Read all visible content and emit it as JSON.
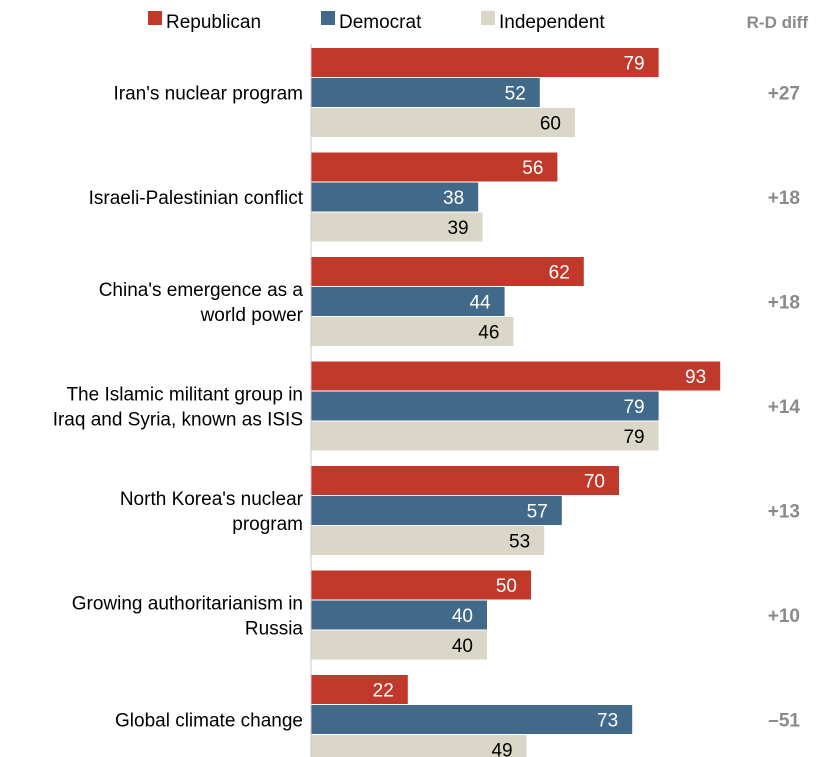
{
  "chart_data": {
    "type": "bar",
    "orientation": "horizontal",
    "categories": [
      [
        "Iran's nuclear program"
      ],
      [
        "Israeli-Palestinian conflict"
      ],
      [
        "China's emergence as a",
        "world power"
      ],
      [
        "The Islamic militant group in",
        "Iraq and Syria, known as ISIS"
      ],
      [
        "North Korea's nuclear",
        "program"
      ],
      [
        "Growing authoritarianism in",
        "Russia"
      ],
      [
        "Global climate change"
      ]
    ],
    "series": [
      {
        "name": "Republican",
        "color": "#c0392b",
        "values": [
          79,
          56,
          62,
          93,
          70,
          50,
          22
        ]
      },
      {
        "name": "Democrat",
        "color": "#41698a",
        "values": [
          52,
          38,
          44,
          79,
          57,
          40,
          73
        ]
      },
      {
        "name": "Independent",
        "color": "#dbd7c8",
        "values": [
          60,
          39,
          46,
          79,
          53,
          40,
          49
        ]
      }
    ],
    "diff_header": "R-D diff",
    "diffs": [
      "+27",
      "+18",
      "+18",
      "+14",
      "+13",
      "+10",
      "–51"
    ],
    "xlim": [
      0,
      100
    ],
    "legend_position": "top"
  }
}
